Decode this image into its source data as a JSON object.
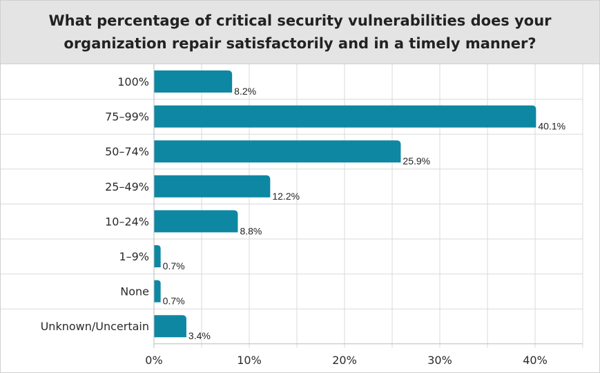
{
  "chart_data": {
    "type": "bar",
    "orientation": "horizontal",
    "title": "What percentage of critical security vulnerabilities does your organization repair satisfactorily and in a timely manner?",
    "categories": [
      "100%",
      "75–99%",
      "50–74%",
      "25–49%",
      "10–24%",
      "1–9%",
      "None",
      "Unknown/Uncertain"
    ],
    "values": [
      8.2,
      40.1,
      25.9,
      12.2,
      8.8,
      0.7,
      0.7,
      3.4
    ],
    "value_labels": [
      "8.2%",
      "40.1%",
      "25.9%",
      "12.2%",
      "8.8%",
      "0.7%",
      "0.7%",
      "3.4%"
    ],
    "xlim": [
      0,
      45
    ],
    "xticks": [
      0,
      10,
      20,
      30,
      40
    ],
    "xtick_labels": [
      "0%",
      "10%",
      "20%",
      "30%",
      "40%"
    ],
    "grid": true,
    "bar_color": "#0e87a3"
  }
}
